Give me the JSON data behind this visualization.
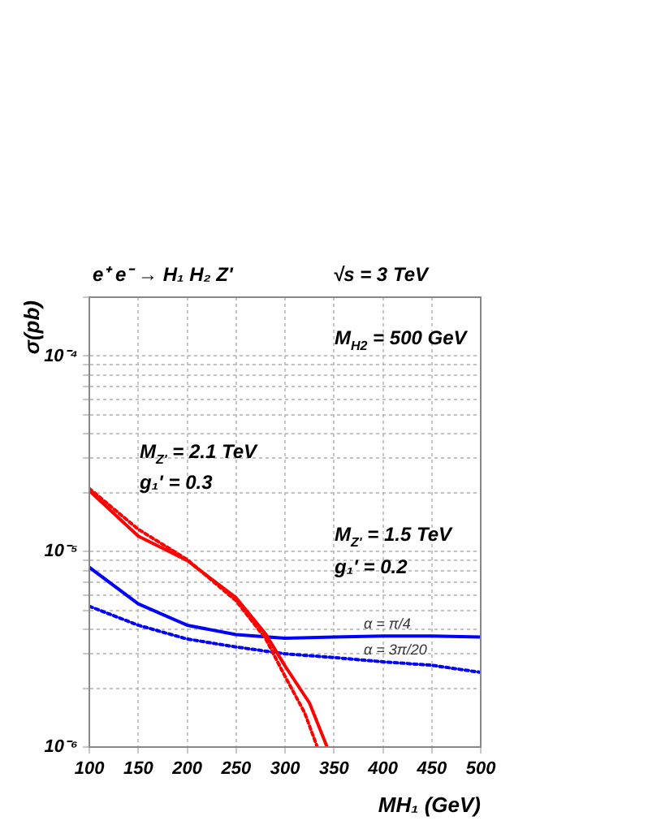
{
  "chart_data": {
    "type": "line",
    "title": "e⁺ e⁻ → H₁ H₂ Z'",
    "xlabel": "MH₁ (GeV)",
    "ylabel": "σ(pb)",
    "annotations": [
      "√s = 3 TeV",
      "M$_{H2}$ = 500 GeV",
      "M$_{Z'}$ = 2.1 TeV",
      "g₁' = 0.3",
      "M$_{Z'}$ = 1.5 TeV",
      "g₁' = 0.2"
    ],
    "log": "y",
    "grid": true,
    "legend": false,
    "marker": "none",
    "xlim": [
      100,
      500
    ],
    "xticks": [
      100,
      150,
      200,
      250,
      300,
      350,
      400,
      450,
      500
    ],
    "ylim": [
      1e-06,
      0.0002
    ],
    "yticks": [
      {
        "value": 1e-06,
        "label": "10⁻⁶"
      },
      {
        "value": 2e-06,
        "label": null
      },
      {
        "value": 3e-06,
        "label": null
      },
      {
        "value": 4e-06,
        "label": null
      },
      {
        "value": 5e-06,
        "label": null
      },
      {
        "value": 6e-06,
        "label": null
      },
      {
        "value": 7e-06,
        "label": null
      },
      {
        "value": 8e-06,
        "label": null
      },
      {
        "value": 9e-06,
        "label": null
      },
      {
        "value": 1e-05,
        "label": "10⁻⁵"
      },
      {
        "value": 2e-05,
        "label": null
      },
      {
        "value": 3e-05,
        "label": null
      },
      {
        "value": 4e-05,
        "label": null
      },
      {
        "value": 5e-05,
        "label": null
      },
      {
        "value": 6e-05,
        "label": null
      },
      {
        "value": 7e-05,
        "label": null
      },
      {
        "value": 8e-05,
        "label": null
      },
      {
        "value": 9e-05,
        "label": null
      },
      {
        "value": 0.0001,
        "label": "10⁻⁴"
      },
      {
        "value": 0.0002,
        "label": null
      }
    ],
    "series": [
      {
        "color": "#ff0000",
        "line_style": "solid",
        "x": [
          100,
          150,
          200,
          250,
          280,
          300,
          325,
          343
        ],
        "values": [
          2.05e-05,
          1.2e-05,
          9e-06,
          5.8e-06,
          3.8e-06,
          2.6e-06,
          1.68e-06,
          1e-06
        ]
      },
      {
        "color": "#ff0000",
        "line_style": "dotted",
        "x": [
          100,
          150,
          200,
          250,
          280,
          300,
          320,
          333
        ],
        "values": [
          2.1e-05,
          1.3e-05,
          9.1e-06,
          5.6e-06,
          3.6e-06,
          2.3e-06,
          1.5e-06,
          1e-06
        ]
      },
      {
        "name": "α = π/4",
        "color": "#0000ff",
        "line_style": "solid",
        "x": [
          100,
          150,
          200,
          250,
          300,
          350,
          400,
          450,
          500
        ],
        "values": [
          8.3e-06,
          5.4e-06,
          4.2e-06,
          3.76e-06,
          3.6e-06,
          3.65e-06,
          3.7e-06,
          3.7e-06,
          3.65e-06
        ]
      },
      {
        "name": "α = 3π/20",
        "color": "#0000ff",
        "line_style": "dotted",
        "x": [
          100,
          150,
          200,
          250,
          300,
          350,
          400,
          450,
          500
        ],
        "values": [
          5.25e-06,
          4.2e-06,
          3.57e-06,
          3.25e-06,
          3e-06,
          2.87e-06,
          2.73e-06,
          2.62e-06,
          2.41e-06
        ]
      }
    ]
  }
}
